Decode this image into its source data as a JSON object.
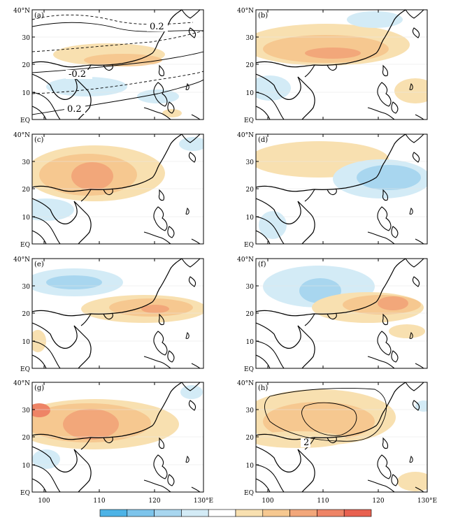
{
  "panels": [
    {
      "label": "(a)",
      "contour_labels": [
        "0.2",
        "-0.2",
        "0.2"
      ]
    },
    {
      "label": "(b)",
      "contour_labels": []
    },
    {
      "label": "(c)",
      "contour_labels": []
    },
    {
      "label": "(d)",
      "contour_labels": []
    },
    {
      "label": "(e)",
      "contour_labels": []
    },
    {
      "label": "(f)",
      "contour_labels": []
    },
    {
      "label": "(g)",
      "contour_labels": []
    },
    {
      "label": "(h)",
      "contour_labels": [
        "2"
      ]
    }
  ],
  "lat_labels": [
    "40°N",
    "30",
    "20",
    "10",
    "EQ"
  ],
  "lon_labels": [
    "100",
    "110",
    "120",
    "130°E"
  ],
  "colorbar": [
    "#4db3e6",
    "#7dc4eb",
    "#a8d6ef",
    "#d3ebf6",
    "#ffffff",
    "#f8e0b0",
    "#f6c890",
    "#f2a77a",
    "#ee8466",
    "#e86150"
  ],
  "colors": {
    "warm_light": "#f8e0b0",
    "warm_mid": "#f6c890",
    "warm_strong": "#f2a77a",
    "warm_deep": "#ee8466",
    "cool_light": "#d3ebf6",
    "cool_mid": "#a8d6ef",
    "cool_strong": "#7dc4eb"
  }
}
